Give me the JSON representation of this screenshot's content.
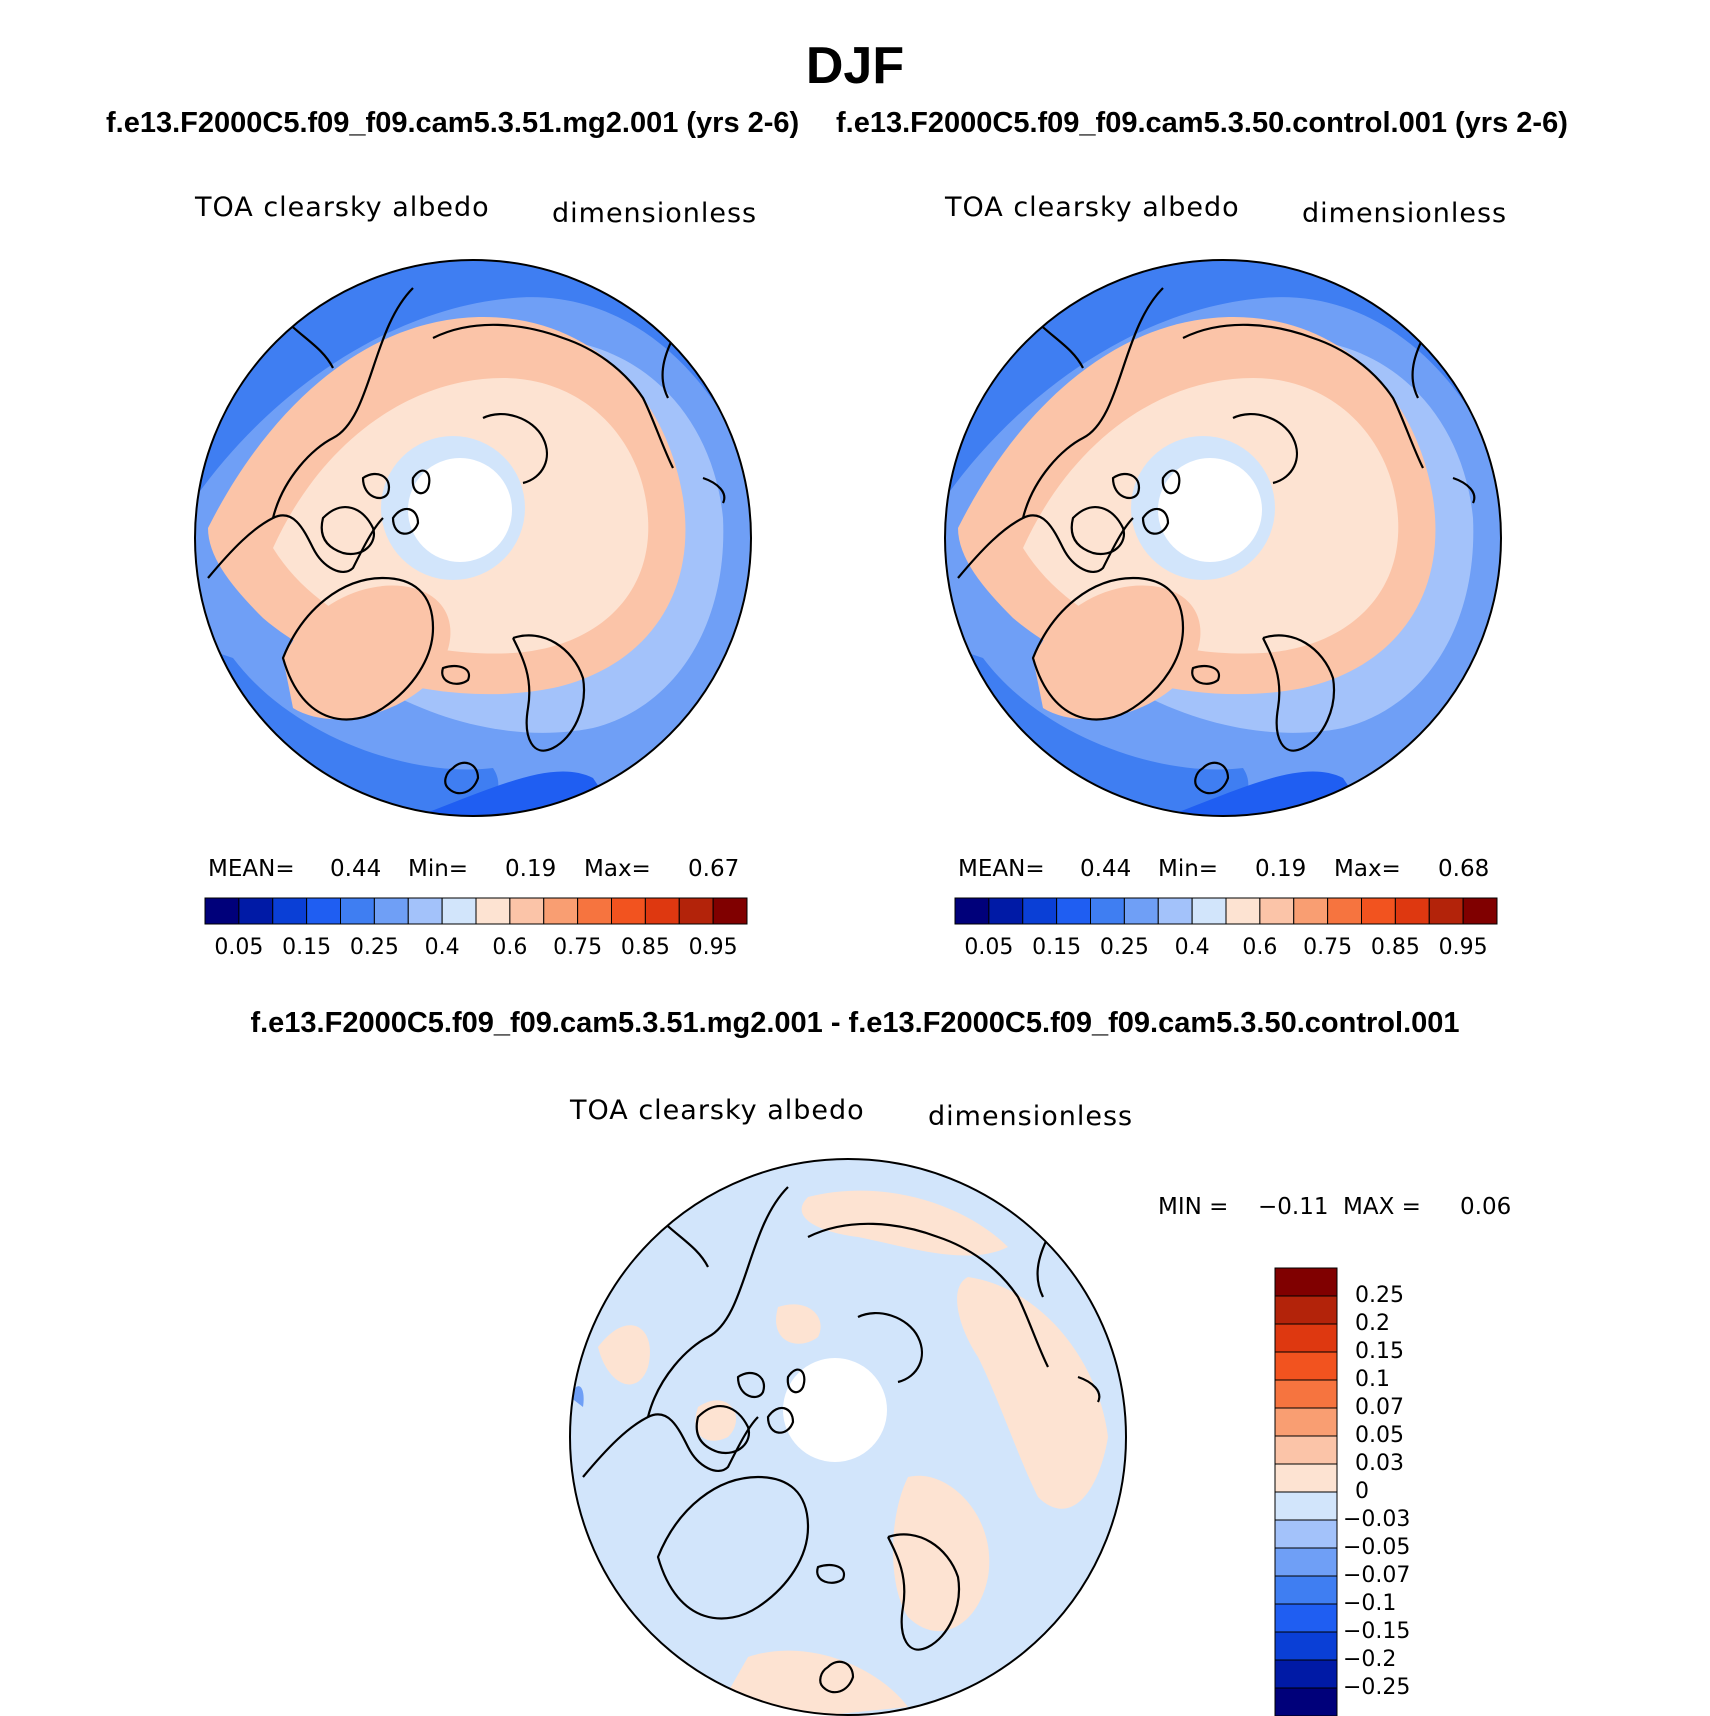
{
  "title": "DJF",
  "case_titles": [
    "f.e13.F2000C5.f09_f09.cam5.3.51.mg2.001 (yrs 2-6)",
    "f.e13.F2000C5.f09_f09.cam5.3.50.control.001 (yrs 2-6)"
  ],
  "diff_title": "f.e13.F2000C5.f09_f09.cam5.3.51.mg2.001 - f.e13.F2000C5.f09_f09.cam5.3.50.control.001",
  "panels": [
    {
      "variable": "TOA clearsky albedo",
      "units": "dimensionless",
      "stats": {
        "mean_label": "MEAN=",
        "mean": "0.44",
        "min_label": "Min=",
        "min": "0.19",
        "max_label": "Max=",
        "max": "0.67"
      }
    },
    {
      "variable": "TOA clearsky albedo",
      "units": "dimensionless",
      "stats": {
        "mean_label": "MEAN=",
        "mean": "0.44",
        "min_label": "Min=",
        "min": "0.19",
        "max_label": "Max=",
        "max": "0.68"
      }
    },
    {
      "variable": "TOA clearsky albedo",
      "units": "dimensionless",
      "stats": {
        "min_label": "MIN =",
        "min": "−0.11",
        "max_label": "MAX =",
        "max": "0.06"
      }
    }
  ],
  "colorbar_main": {
    "labels": [
      "0.05",
      "0.15",
      "0.25",
      "0.4",
      "0.6",
      "0.75",
      "0.85",
      "0.95"
    ],
    "colors": [
      "#00007a",
      "#001aa6",
      "#0a3fd6",
      "#1f5ef2",
      "#3f7ef2",
      "#6f9ff6",
      "#a3c2fa",
      "#d2e5fb",
      "#fde3d2",
      "#fbc4a8",
      "#f99e72",
      "#f6743f",
      "#f2531f",
      "#de3810",
      "#b3230a",
      "#800000"
    ]
  },
  "colorbar_diff": {
    "labels": [
      "0.25",
      "0.2",
      "0.15",
      "0.1",
      "0.07",
      "0.05",
      "0.03",
      "0",
      "−0.03",
      "−0.05",
      "−0.07",
      "−0.1",
      "−0.15",
      "−0.2",
      "−0.25"
    ],
    "colors_top_to_bottom": [
      "#800000",
      "#b3230a",
      "#de3810",
      "#f2531f",
      "#f6743f",
      "#f99e72",
      "#fbc4a8",
      "#fde3d2",
      "#d2e5fb",
      "#a3c2fa",
      "#6f9ff6",
      "#3f7ef2",
      "#1f5ef2",
      "#0a3fd6",
      "#001aa6",
      "#00007a"
    ]
  },
  "map_colors": {
    "land_field": "#fbc4a8",
    "ocean_field": "#3f7ef2",
    "mid_field": "#a3c2fa",
    "light_field": "#d2e5fb",
    "diff_background": "#d2e5fb",
    "diff_positive": "#fde3d2"
  }
}
